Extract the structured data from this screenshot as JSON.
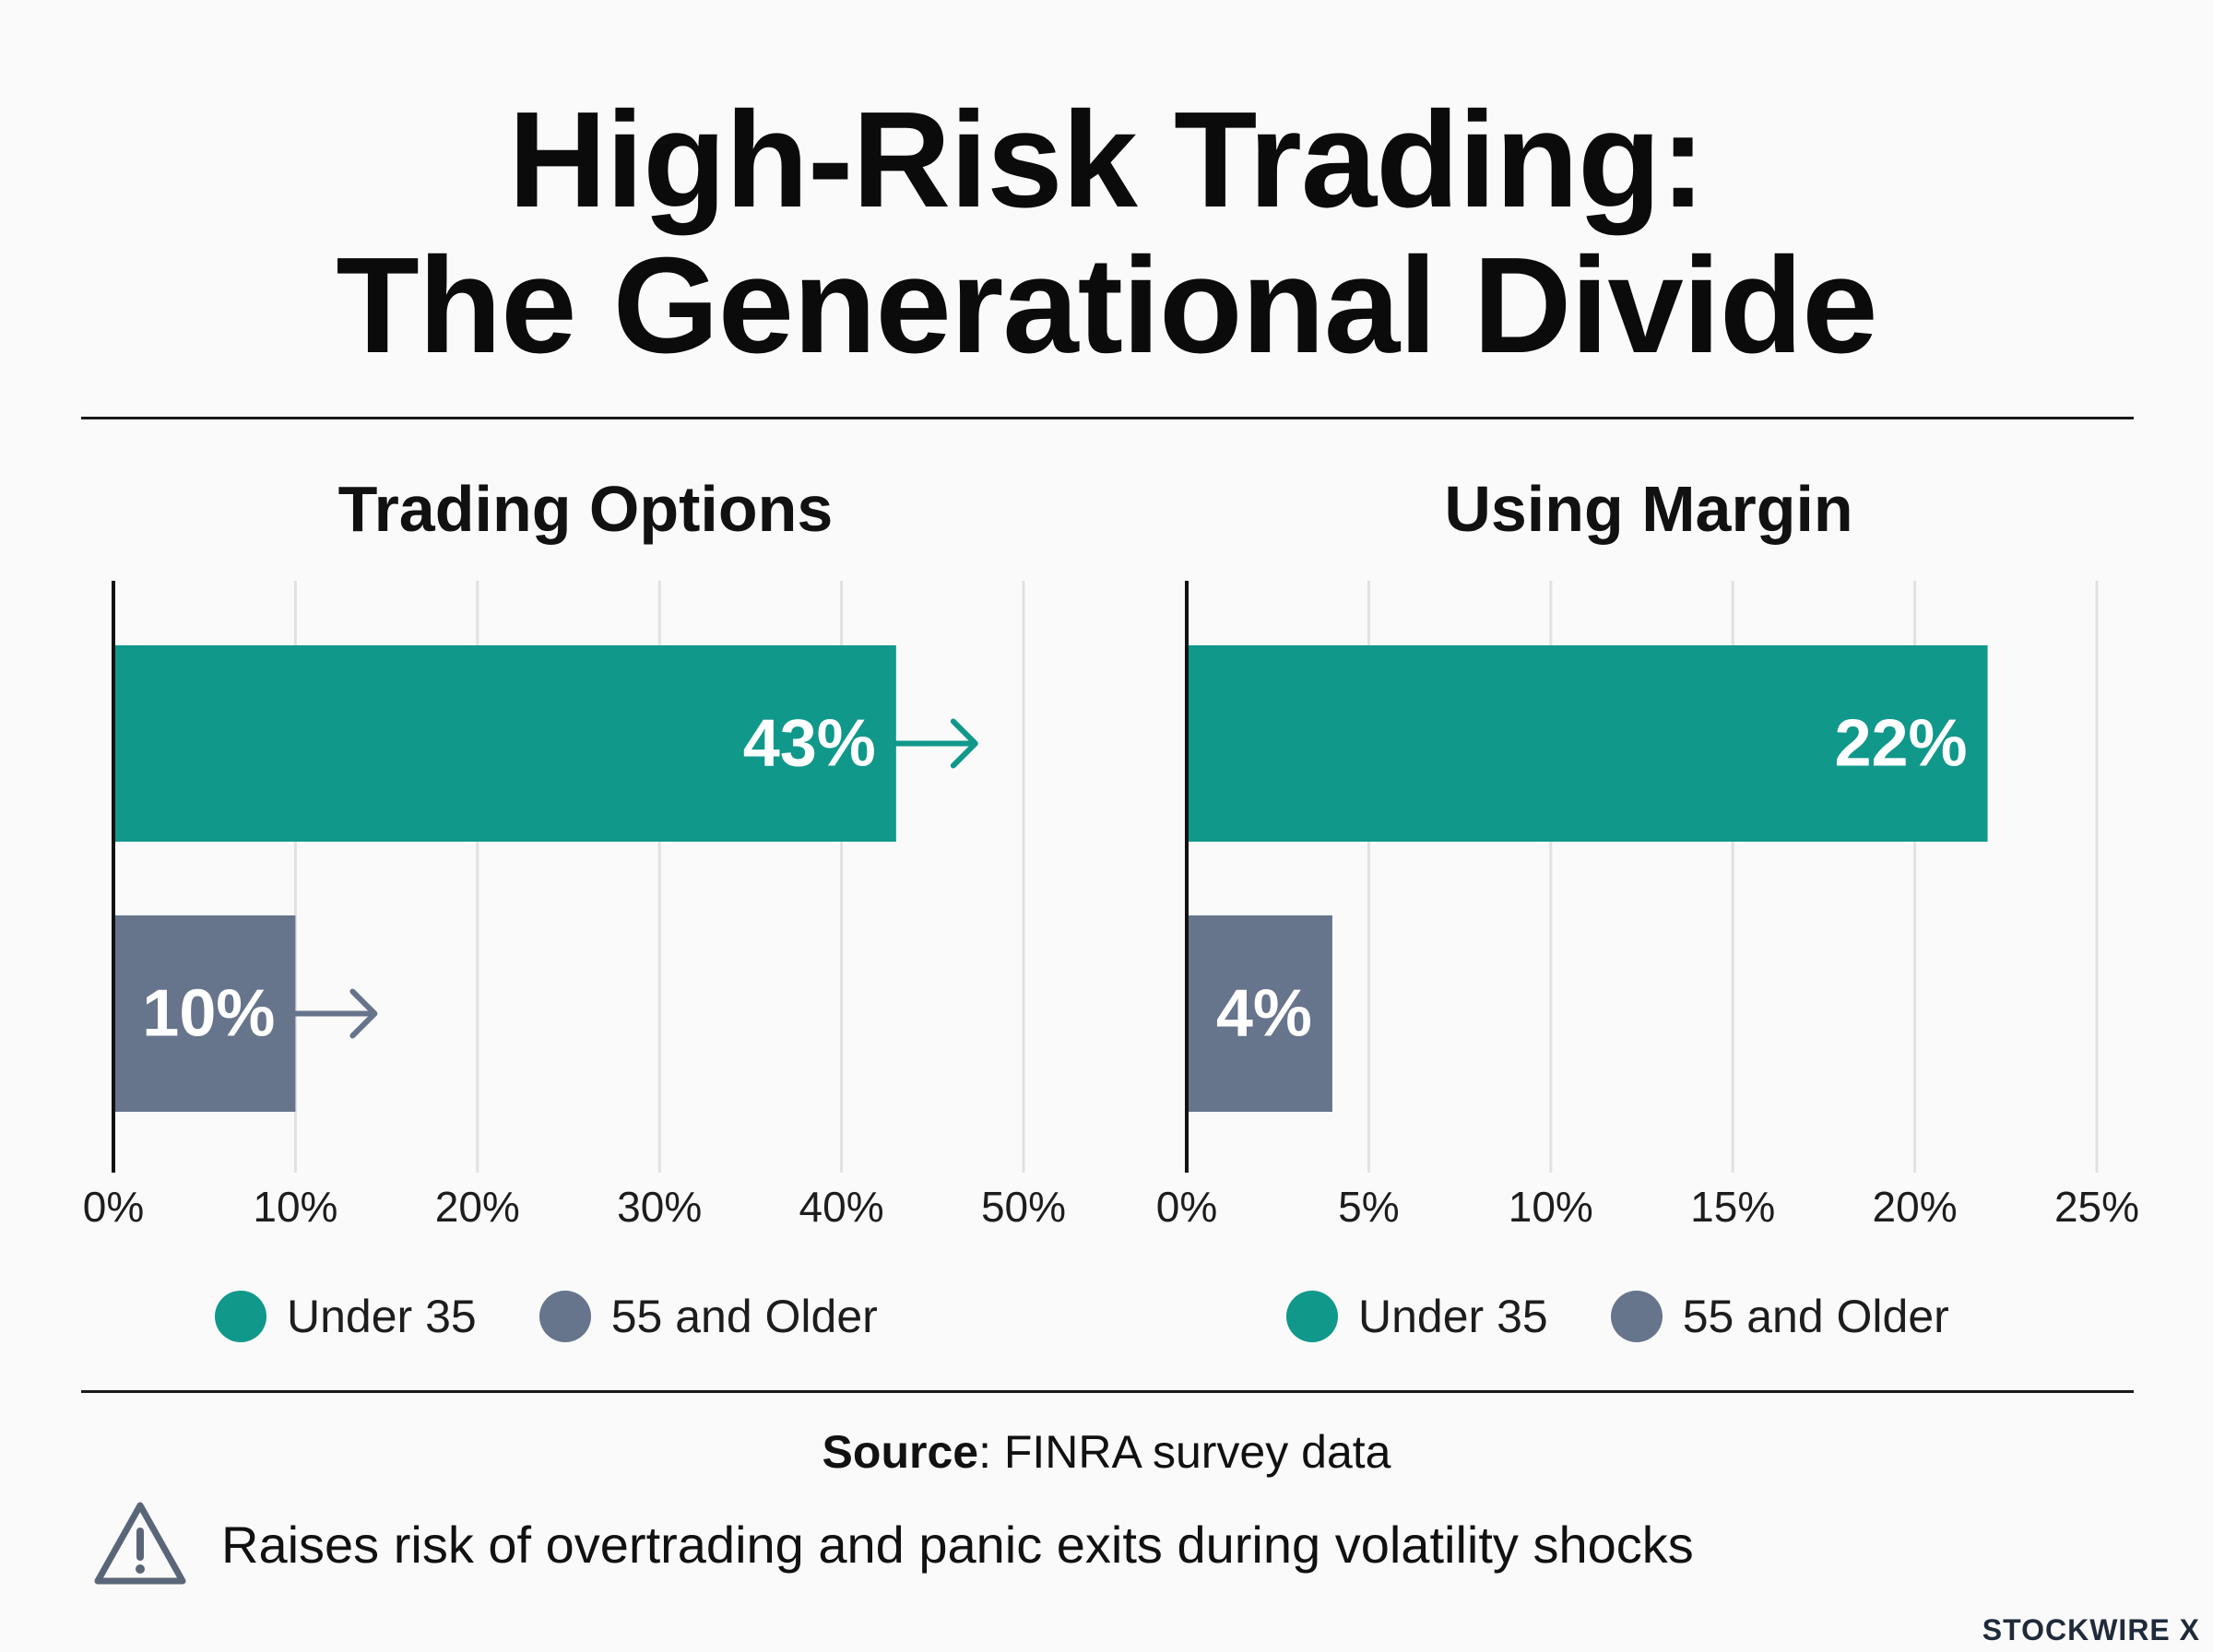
{
  "title_line1": "High-Risk Trading:",
  "title_line2": "The Generational Divide",
  "colors": {
    "under35": "#10988b",
    "older55": "#66748c",
    "grid": "#e1e1e1",
    "axis": "#111111"
  },
  "chart_data": [
    {
      "type": "bar",
      "orientation": "horizontal",
      "title": "Trading Options",
      "categories": [
        "Under 35",
        "55 and Older"
      ],
      "values": [
        43,
        10
      ],
      "data_labels": [
        "43%",
        "10%"
      ],
      "xlim": [
        0,
        50
      ],
      "ticks": [
        0,
        10,
        20,
        30,
        40,
        50
      ],
      "tick_labels": [
        "0%",
        "10%",
        "20%",
        "30%",
        "40%",
        "50%"
      ],
      "grid": true,
      "legend": [
        "Under 35",
        "55 and Older"
      ],
      "legend_position": "bottom"
    },
    {
      "type": "bar",
      "orientation": "horizontal",
      "title": "Using Margin",
      "categories": [
        "Under 35",
        "55 and Older"
      ],
      "values": [
        22,
        4
      ],
      "data_labels": [
        "22%",
        "4%"
      ],
      "xlim": [
        0,
        25
      ],
      "ticks": [
        0,
        5,
        10,
        15,
        20,
        25
      ],
      "tick_labels": [
        "0%",
        "5%",
        "10%",
        "15%",
        "20%",
        "25%"
      ],
      "grid": true,
      "legend": [
        "Under 35",
        "55 and Older"
      ],
      "legend_position": "bottom"
    }
  ],
  "source_label": "Source",
  "source_text": ": FINRA survey data",
  "warning_icon": "warning-triangle-icon",
  "note_text": "Raises risk of overtrading and panic exits during volatility shocks",
  "brand": "STOCKWIRE X"
}
